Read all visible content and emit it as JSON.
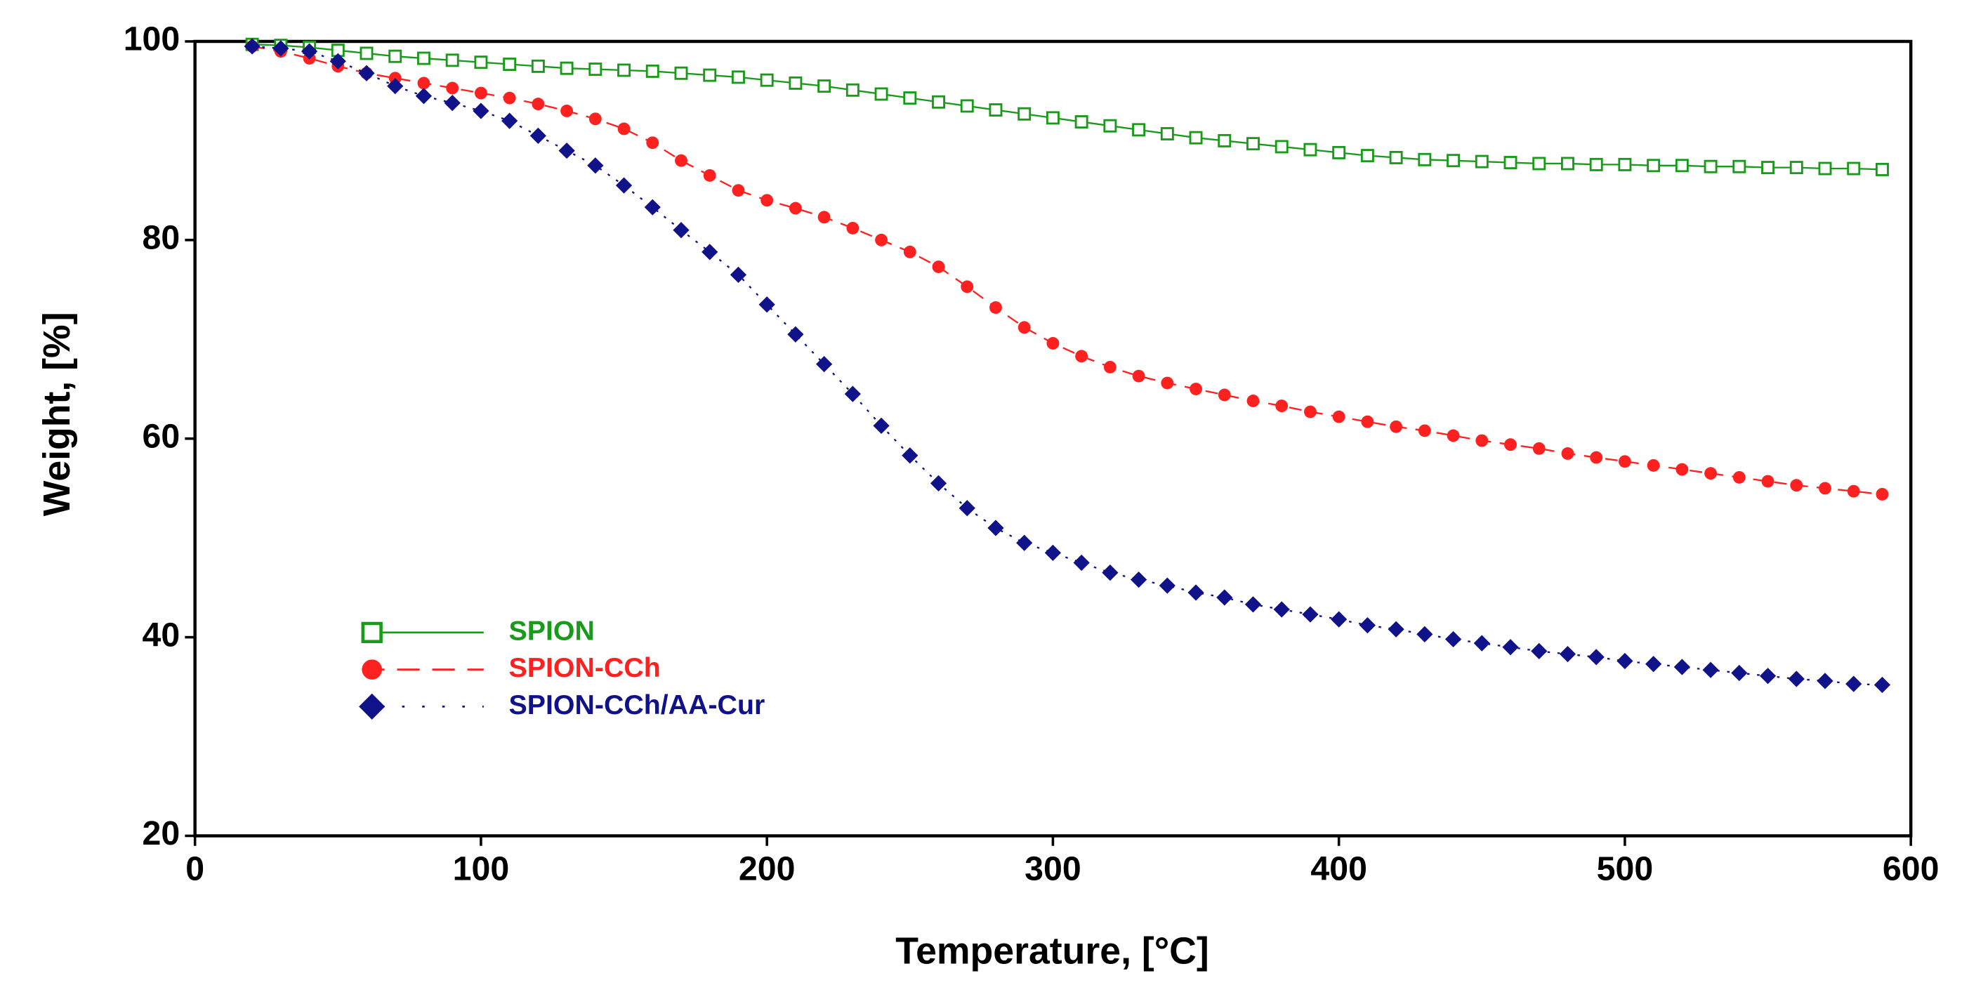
{
  "chart_data": {
    "type": "line",
    "xlabel": "Temperature, [°C]",
    "ylabel": "Weight, [%]",
    "xlim": [
      0,
      600
    ],
    "xticks": [
      0,
      100,
      200,
      300,
      400,
      500,
      600
    ],
    "ylim": [
      20,
      100
    ],
    "yticks": [
      20,
      40,
      60,
      80,
      100
    ],
    "x": [
      20,
      30,
      40,
      50,
      60,
      70,
      80,
      90,
      100,
      110,
      120,
      130,
      140,
      150,
      160,
      170,
      180,
      190,
      200,
      210,
      220,
      230,
      240,
      250,
      260,
      270,
      280,
      290,
      300,
      310,
      320,
      330,
      340,
      350,
      360,
      370,
      380,
      390,
      400,
      410,
      420,
      430,
      440,
      450,
      460,
      470,
      480,
      490,
      500,
      510,
      520,
      530,
      540,
      550,
      560,
      570,
      580,
      590
    ],
    "series": [
      {
        "name": "SPION",
        "color": "#1a9a1a",
        "line": "solid",
        "marker": "square",
        "values": [
          99.7,
          99.6,
          99.4,
          99.1,
          98.8,
          98.5,
          98.3,
          98.1,
          97.9,
          97.7,
          97.5,
          97.3,
          97.2,
          97.1,
          97,
          96.8,
          96.6,
          96.4,
          96.1,
          95.8,
          95.5,
          95.1,
          94.7,
          94.3,
          93.9,
          93.5,
          93.1,
          92.7,
          92.3,
          91.9,
          91.5,
          91.1,
          90.7,
          90.3,
          90,
          89.7,
          89.4,
          89.1,
          88.8,
          88.5,
          88.3,
          88.1,
          88,
          87.9,
          87.8,
          87.7,
          87.7,
          87.6,
          87.6,
          87.5,
          87.5,
          87.4,
          87.4,
          87.3,
          87.3,
          87.2,
          87.2,
          87.1
        ]
      },
      {
        "name": "SPION-CCh",
        "color": "#ff2020",
        "line": "dashed",
        "marker": "circle",
        "values": [
          99.5,
          99,
          98.3,
          97.5,
          96.8,
          96.3,
          95.8,
          95.3,
          94.8,
          94.3,
          93.7,
          93,
          92.2,
          91.2,
          89.8,
          88,
          86.5,
          85,
          84,
          83.2,
          82.3,
          81.2,
          80,
          78.8,
          77.3,
          75.3,
          73.2,
          71.2,
          69.6,
          68.3,
          67.2,
          66.3,
          65.6,
          65,
          64.4,
          63.8,
          63.3,
          62.7,
          62.2,
          61.7,
          61.2,
          60.8,
          60.3,
          59.8,
          59.4,
          59,
          58.5,
          58.1,
          57.7,
          57.3,
          56.9,
          56.5,
          56.1,
          55.7,
          55.3,
          55,
          54.7,
          54.4
        ]
      },
      {
        "name": "SPION-CCh/AA-Cur",
        "color": "#10128a",
        "line": "dotted",
        "marker": "diamond",
        "values": [
          99.5,
          99.3,
          99,
          98,
          96.8,
          95.5,
          94.5,
          93.8,
          93,
          92,
          90.5,
          89,
          87.5,
          85.5,
          83.3,
          81,
          78.8,
          76.5,
          73.5,
          70.5,
          67.5,
          64.5,
          61.3,
          58.3,
          55.5,
          53,
          51,
          49.5,
          48.5,
          47.5,
          46.5,
          45.8,
          45.2,
          44.5,
          44,
          43.3,
          42.8,
          42.3,
          41.8,
          41.2,
          40.8,
          40.3,
          39.8,
          39.4,
          39,
          38.6,
          38.3,
          38,
          37.6,
          37.3,
          37,
          36.7,
          36.4,
          36.1,
          35.8,
          35.6,
          35.3,
          35.2
        ]
      }
    ]
  }
}
